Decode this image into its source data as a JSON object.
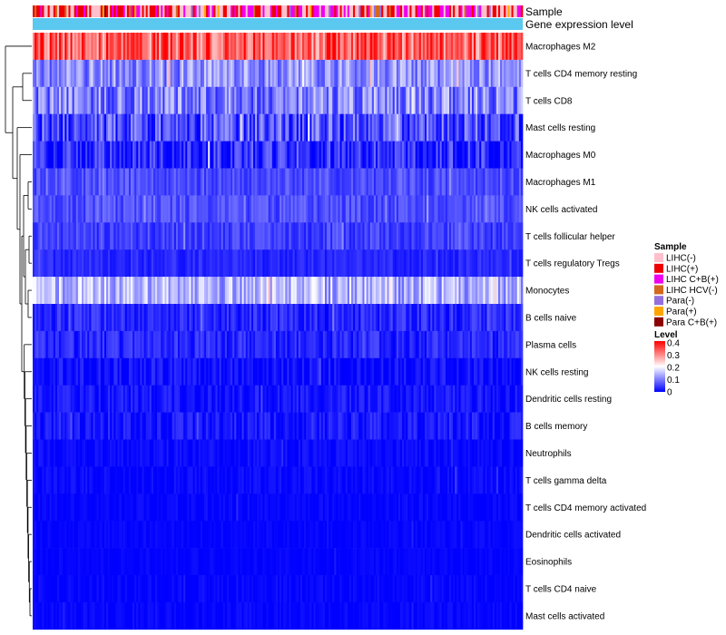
{
  "chart_data": {
    "type": "heatmap",
    "annotation_tracks": [
      "Sample",
      "Gene expression level"
    ],
    "rows": [
      {
        "label": "Macrophages M2",
        "mean": 0.33,
        "spread": 0.09
      },
      {
        "label": "T cells CD4 memory resting",
        "mean": 0.11,
        "spread": 0.06
      },
      {
        "label": "T cells CD8",
        "mean": 0.1,
        "spread": 0.07
      },
      {
        "label": "Mast cells resting",
        "mean": 0.06,
        "spread": 0.07
      },
      {
        "label": "Macrophages M0",
        "mean": 0.03,
        "spread": 0.06
      },
      {
        "label": "Macrophages M1",
        "mean": 0.06,
        "spread": 0.03
      },
      {
        "label": "NK cells activated",
        "mean": 0.06,
        "spread": 0.03
      },
      {
        "label": "T cells follicular helper",
        "mean": 0.05,
        "spread": 0.03
      },
      {
        "label": "T cells regulatory  Tregs",
        "mean": 0.03,
        "spread": 0.02
      },
      {
        "label": "Monocytes",
        "mean": 0.14,
        "spread": 0.06
      },
      {
        "label": "B cells naive",
        "mean": 0.03,
        "spread": 0.03
      },
      {
        "label": "Plasma cells",
        "mean": 0.03,
        "spread": 0.03
      },
      {
        "label": "NK cells resting",
        "mean": 0.01,
        "spread": 0.03
      },
      {
        "label": "Dendritic cells resting",
        "mean": 0.015,
        "spread": 0.025
      },
      {
        "label": "B cells memory",
        "mean": 0.015,
        "spread": 0.03
      },
      {
        "label": "Neutrophils",
        "mean": 0.008,
        "spread": 0.015
      },
      {
        "label": "T cells gamma delta",
        "mean": 0.005,
        "spread": 0.015
      },
      {
        "label": "T cells CD4 memory activated",
        "mean": 0.003,
        "spread": 0.012
      },
      {
        "label": "Dendritic cells activated",
        "mean": 0.003,
        "spread": 0.01
      },
      {
        "label": "Eosinophils",
        "mean": 0.002,
        "spread": 0.008
      },
      {
        "label": "T cells CD4 naive",
        "mean": 0.003,
        "spread": 0.012
      },
      {
        "label": "Mast cells activated",
        "mean": 0.003,
        "spread": 0.012
      }
    ],
    "n_columns": 260,
    "legend": {
      "sample": {
        "title": "Sample",
        "items": [
          {
            "label": "LIHC(-)",
            "color": "#ffc0cb"
          },
          {
            "label": "LIHC(+)",
            "color": "#ee0000"
          },
          {
            "label": "LIHC C+B(+)",
            "color": "#ee00ee"
          },
          {
            "label": "LIHC HCV(-)",
            "color": "#d2691e"
          },
          {
            "label": "Para(-)",
            "color": "#9370db"
          },
          {
            "label": "Para(+)",
            "color": "#ffa500"
          },
          {
            "label": "Para C+B(+)",
            "color": "#8b0000"
          }
        ]
      },
      "level": {
        "title": "Level",
        "ticks": [
          "0.4",
          "0.3",
          "0.2",
          "0.1",
          "0"
        ],
        "range": [
          0,
          0.4
        ],
        "colors": [
          "#0000ff",
          "#ffffff",
          "#ff0000"
        ]
      }
    },
    "expression_track_color": "#5bc8f0",
    "sample_mix": [
      0.38,
      0.27,
      0.25,
      0.03,
      0.04,
      0.02,
      0.01
    ]
  }
}
